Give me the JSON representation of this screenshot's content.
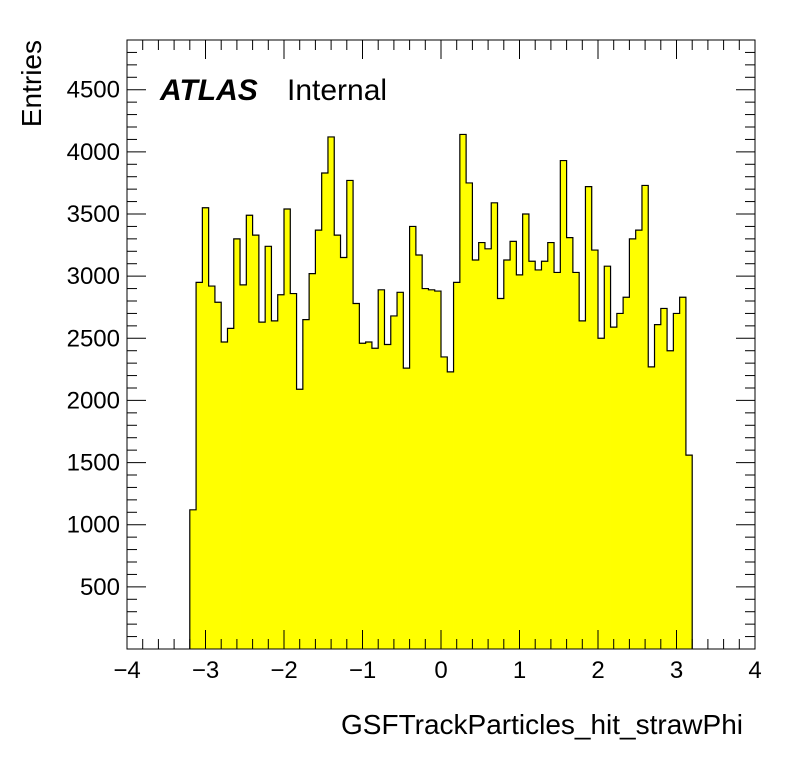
{
  "chart_data": {
    "type": "bar",
    "style": "histogram",
    "fill_color": "#ffff00",
    "line_color": "#000000",
    "xlabel": "GSFTrackParticles_hit_strawPhi",
    "ylabel": "Entries",
    "label_main": "ATLAS",
    "label_sub": "Internal",
    "xlim": [
      -4,
      4
    ],
    "ylim": [
      0,
      4900
    ],
    "x_ticks": [
      -4,
      -3,
      -2,
      -1,
      0,
      1,
      2,
      3,
      4
    ],
    "x_tick_labels": [
      "−4",
      "−3",
      "−2",
      "−1",
      "0",
      "1",
      "2",
      "3",
      "4"
    ],
    "y_ticks": [
      500,
      1000,
      1500,
      2000,
      2500,
      3000,
      3500,
      4000,
      4500
    ],
    "y_tick_labels": [
      "500",
      "1000",
      "1500",
      "2000",
      "2500",
      "3000",
      "3500",
      "4000",
      "4500"
    ],
    "bin_start": -3.2,
    "bin_width": 0.08,
    "values": [
      1120,
      2950,
      3550,
      2920,
      2790,
      2470,
      2580,
      3300,
      2930,
      3490,
      3330,
      2630,
      3240,
      2640,
      2850,
      3540,
      2860,
      2090,
      2650,
      3020,
      3370,
      3830,
      4120,
      3330,
      3150,
      3770,
      2780,
      2460,
      2470,
      2420,
      2890,
      2450,
      2680,
      2870,
      2260,
      3400,
      3170,
      2900,
      2890,
      2880,
      2350,
      2230,
      2950,
      4140,
      3750,
      3130,
      3270,
      3220,
      3590,
      2820,
      3130,
      3280,
      3010,
      3500,
      3120,
      3050,
      3120,
      3270,
      3030,
      3930,
      3310,
      3030,
      2640,
      3720,
      3210,
      2500,
      3080,
      2590,
      2700,
      2830,
      3300,
      3370,
      3730,
      2270,
      2610,
      2740,
      2400,
      2700,
      2830,
      1560
    ]
  }
}
